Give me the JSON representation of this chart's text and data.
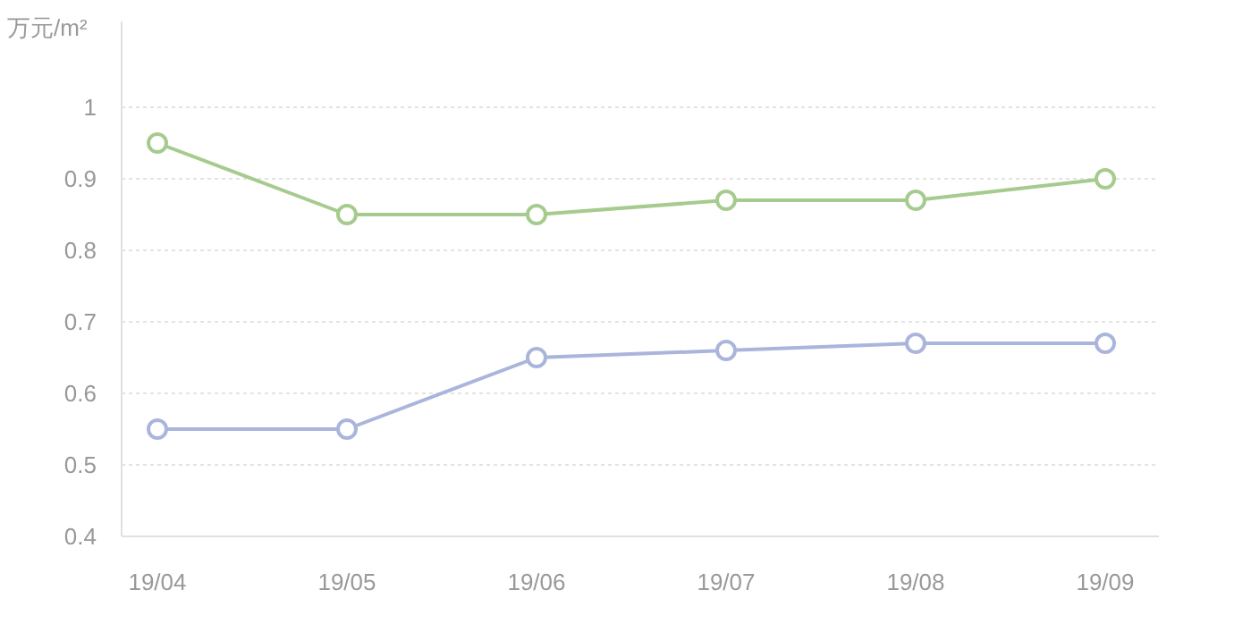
{
  "chart_data": {
    "type": "line",
    "ylabel": "万元/m²",
    "categories": [
      "19/04",
      "19/05",
      "19/06",
      "19/07",
      "19/08",
      "19/09"
    ],
    "series": [
      {
        "color": "#a5cb8e",
        "values": [
          0.95,
          0.85,
          0.85,
          0.87,
          0.87,
          0.9
        ]
      },
      {
        "color": "#aab5dc",
        "values": [
          0.55,
          0.55,
          0.65,
          0.66,
          0.67,
          0.67
        ]
      }
    ],
    "ylim": [
      0.4,
      1.12
    ],
    "yticks": [
      0.4,
      0.5,
      0.6,
      0.7,
      0.8,
      0.9,
      1
    ],
    "grid": "y",
    "marker": "circle",
    "line_style": "solid"
  }
}
